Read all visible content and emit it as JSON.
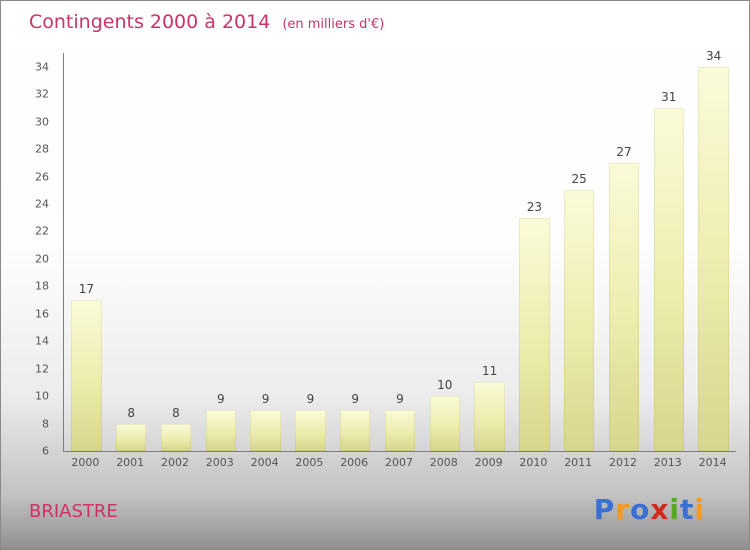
{
  "header": {
    "title": "Contingents 2000 à 2014",
    "subtitle": "(en milliers d'€)"
  },
  "chart_data": {
    "type": "bar",
    "title": "Contingents 2000 à 2014",
    "subtitle": "(en milliers d'€)",
    "xlabel": "",
    "ylabel": "",
    "categories": [
      "2000",
      "2001",
      "2002",
      "2003",
      "2004",
      "2005",
      "2006",
      "2007",
      "2008",
      "2009",
      "2010",
      "2011",
      "2012",
      "2013",
      "2014"
    ],
    "values": [
      17,
      8,
      8,
      9,
      9,
      9,
      9,
      9,
      10,
      11,
      23,
      25,
      27,
      31,
      34
    ],
    "ylim": [
      6,
      35
    ],
    "yticks": [
      6,
      8,
      10,
      12,
      14,
      16,
      18,
      20,
      22,
      24,
      26,
      28,
      30,
      32,
      34
    ],
    "grid": false,
    "legend": false,
    "bar_color_top": "#fbfbd9",
    "bar_color_mid": "#ececad",
    "bar_color_bottom": "#d6d68c"
  },
  "footer": {
    "location": "BRIASTRE",
    "brand": [
      {
        "ch": "P",
        "color": "#3b6fd4"
      },
      {
        "ch": "r",
        "color": "#f59a1e"
      },
      {
        "ch": "o",
        "color": "#3b6fd4"
      },
      {
        "ch": "x",
        "color": "#d42a1e"
      },
      {
        "ch": "i",
        "color": "#57a821"
      },
      {
        "ch": "t",
        "color": "#3b6fd4"
      },
      {
        "ch": "i",
        "color": "#f59a1e"
      }
    ]
  },
  "colors": {
    "title": "#cc3366",
    "axis": "#7d7d7d",
    "tick_label": "#555555",
    "value_label": "#444444"
  }
}
